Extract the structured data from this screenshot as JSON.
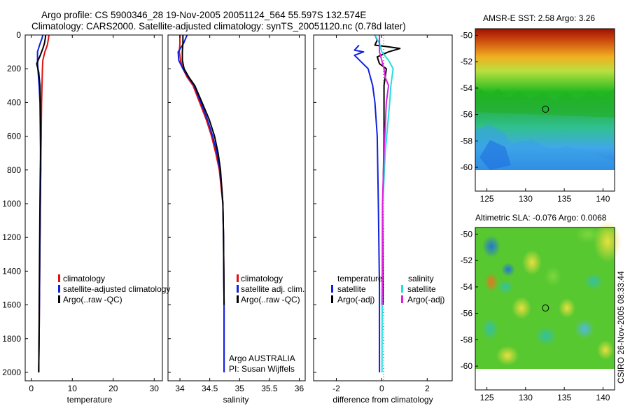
{
  "title_line1": "Argo profile: CS 5900346_28 19-Nov-2005 20051124_564 55.597S 132.574E",
  "title_line2": "Climatology: CARS2000. Satellite-adjusted climatology: synTS_20051120.nc (0.78d later)",
  "timestamp": "CSIRO 26-Nov-2005 08:33:44",
  "colors": {
    "climatology": "#e01010",
    "satellite": "#1020e0",
    "argo": "#000000",
    "sal_satellite": "#20e0e0",
    "sal_argo": "#e020e0"
  },
  "chart_data": [
    {
      "type": "line",
      "id": "temperature",
      "xlabel": "temperature",
      "xlim": [
        -1.5,
        32
      ],
      "ylim": [
        2050,
        0
      ],
      "xticks": [
        0,
        10,
        20,
        30
      ],
      "yticks": [
        0,
        200,
        400,
        600,
        800,
        1000,
        1200,
        1400,
        1600,
        1800,
        2000
      ],
      "legend": {
        "labels": [
          "climatology",
          "satellite-adjusted climatology",
          "Argo(..raw -QC)"
        ],
        "position": "lower-right"
      },
      "series": [
        {
          "name": "climatology",
          "color_key": "climatology",
          "x": [
            4.3,
            4.2,
            3.9,
            3.3,
            2.8,
            2.7,
            2.6,
            2.5,
            2.4,
            2.3,
            2.2,
            2.1,
            2.0,
            1.9,
            1.8
          ],
          "y": [
            0,
            20,
            60,
            100,
            150,
            200,
            300,
            400,
            600,
            800,
            1000,
            1200,
            1500,
            1800,
            2000
          ]
        },
        {
          "name": "satellite-adjusted climatology",
          "color_key": "satellite",
          "x": [
            2.8,
            2.6,
            2.0,
            1.5,
            1.5,
            1.6,
            1.9,
            2.1,
            2.2,
            2.3,
            2.2,
            2.1,
            2.0,
            1.9,
            1.8
          ],
          "y": [
            0,
            20,
            60,
            100,
            150,
            200,
            300,
            400,
            600,
            800,
            1000,
            1200,
            1500,
            1800,
            2000
          ]
        },
        {
          "name": "Argo(..raw -QC)",
          "color_key": "argo",
          "x": [
            3.5,
            3.4,
            3.2,
            2.8,
            2.2,
            1.3,
            1.8,
            2.1,
            2.2,
            2.3,
            2.2,
            2.1,
            2.0,
            1.9,
            1.8
          ],
          "y": [
            0,
            20,
            50,
            80,
            120,
            170,
            220,
            300,
            400,
            600,
            800,
            1000,
            1300,
            1700,
            2000
          ]
        }
      ]
    },
    {
      "type": "line",
      "id": "salinity",
      "xlabel": "salinity",
      "xlim": [
        33.8,
        36.1
      ],
      "ylim": [
        2050,
        0
      ],
      "xticks": [
        34,
        34.5,
        35,
        35.5,
        36
      ],
      "legend": {
        "labels": [
          "climatology",
          "satellite adj. clim.",
          "Argo(..raw -QC)"
        ],
        "position": "lower-right"
      },
      "annotation": [
        "Argo AUSTRALIA",
        "PI: Susan Wijffels"
      ],
      "series": [
        {
          "name": "climatology",
          "color_key": "climatology",
          "x": [
            34.0,
            34.0,
            33.99,
            34.01,
            34.05,
            34.12,
            34.22,
            34.33,
            34.44,
            34.53,
            34.6,
            34.66,
            34.69,
            34.72,
            34.73,
            34.74,
            34.74
          ],
          "y": [
            0,
            50,
            100,
            150,
            200,
            250,
            300,
            400,
            500,
            600,
            700,
            800,
            900,
            1000,
            1200,
            1600,
            2000
          ]
        },
        {
          "name": "satellite adj. clim.",
          "color_key": "satellite",
          "x": [
            34.12,
            34.06,
            33.97,
            33.98,
            34.05,
            34.14,
            34.24,
            34.35,
            34.46,
            34.55,
            34.62,
            34.67,
            34.7,
            34.72,
            34.73,
            34.74,
            34.74
          ],
          "y": [
            0,
            50,
            100,
            150,
            200,
            250,
            300,
            400,
            500,
            600,
            700,
            800,
            900,
            1000,
            1200,
            1600,
            2000
          ]
        },
        {
          "name": "Argo(..raw -QC)",
          "color_key": "argo",
          "x": [
            34.05,
            34.05,
            34.04,
            34.04,
            34.07,
            34.15,
            34.25,
            34.37,
            34.49,
            34.58,
            34.64,
            34.68,
            34.7,
            34.72,
            34.73,
            34.74
          ],
          "y": [
            0,
            50,
            100,
            150,
            200,
            250,
            300,
            400,
            500,
            600,
            700,
            800,
            900,
            1000,
            1200,
            1600
          ]
        }
      ]
    },
    {
      "type": "line",
      "id": "difference",
      "xlabel": "difference from climatology",
      "xlim": [
        -3,
        3.1
      ],
      "ylim": [
        2050,
        0
      ],
      "xticks": [
        -2,
        0,
        2
      ],
      "legend": {
        "temperature_header": "temperature",
        "temperature_labels": [
          "satellite",
          "Argo(-adj)"
        ],
        "salinity_header": "salinity",
        "salinity_labels": [
          "satellite",
          "Argo(-adj)"
        ],
        "position": "lower-right"
      },
      "series": [
        {
          "name": "temperature satellite",
          "color_key": "satellite",
          "x": [
            -1.0,
            -1.1,
            -1.2,
            -0.8,
            -1.2,
            -0.6,
            -0.4,
            -0.3,
            -0.2,
            -0.15,
            -0.1,
            -0.1
          ],
          "y": [
            60,
            75,
            90,
            100,
            120,
            200,
            300,
            400,
            600,
            1000,
            1500,
            2000
          ]
        },
        {
          "name": "temperature Argo(-adj)",
          "color_key": "argo",
          "x": [
            -0.3,
            -0.2,
            -0.3,
            0.3,
            0.8,
            0.3,
            -0.2,
            -0.1,
            0.2,
            0.1,
            0.1,
            0.05,
            0.05
          ],
          "y": [
            0,
            30,
            60,
            70,
            80,
            100,
            130,
            170,
            200,
            300,
            600,
            1000,
            1600
          ]
        },
        {
          "name": "salinity satellite",
          "color_key": "sal_satellite",
          "x": [
            -0.3,
            -0.1,
            0.0,
            0.3,
            0.5,
            0.4,
            0.35,
            0.15,
            0.05,
            0.02,
            0.01
          ],
          "y": [
            0,
            50,
            100,
            150,
            200,
            300,
            400,
            700,
            1000,
            1500,
            2000
          ]
        },
        {
          "name": "salinity Argo(-adj)",
          "color_key": "sal_argo",
          "x": [
            -0.1,
            -0.1,
            0.0,
            0.1,
            0.15,
            0.3,
            0.2,
            0.1,
            0.03,
            0.02,
            0.01
          ],
          "y": [
            0,
            100,
            150,
            200,
            250,
            300,
            400,
            700,
            1000,
            1500,
            1600
          ]
        }
      ]
    },
    {
      "type": "heatmap",
      "id": "sst-map",
      "title": "AMSR-E SST: 2.58 Argo: 3.26",
      "xlim": [
        123.5,
        141.5
      ],
      "ylim": [
        -61.8,
        -49.5
      ],
      "data_ylim": [
        -60.05,
        -49.5
      ],
      "xticks": [
        125,
        130,
        135,
        140
      ],
      "yticks": [
        -50,
        -52,
        -54,
        -56,
        -58,
        -60
      ],
      "marker": {
        "lon": 132.574,
        "lat": -55.597
      }
    },
    {
      "type": "heatmap",
      "id": "sla-map",
      "title": "Altimetric SLA: -0.076 Argo: 0.0068",
      "xlim": [
        123.5,
        141.5
      ],
      "ylim": [
        -61.8,
        -49.5
      ],
      "data_ylim": [
        -60.05,
        -49.5
      ],
      "xticks": [
        125,
        130,
        135,
        140
      ],
      "yticks": [
        -50,
        -52,
        -54,
        -56,
        -58,
        -60
      ],
      "marker": {
        "lon": 132.574,
        "lat": -55.597
      }
    }
  ]
}
